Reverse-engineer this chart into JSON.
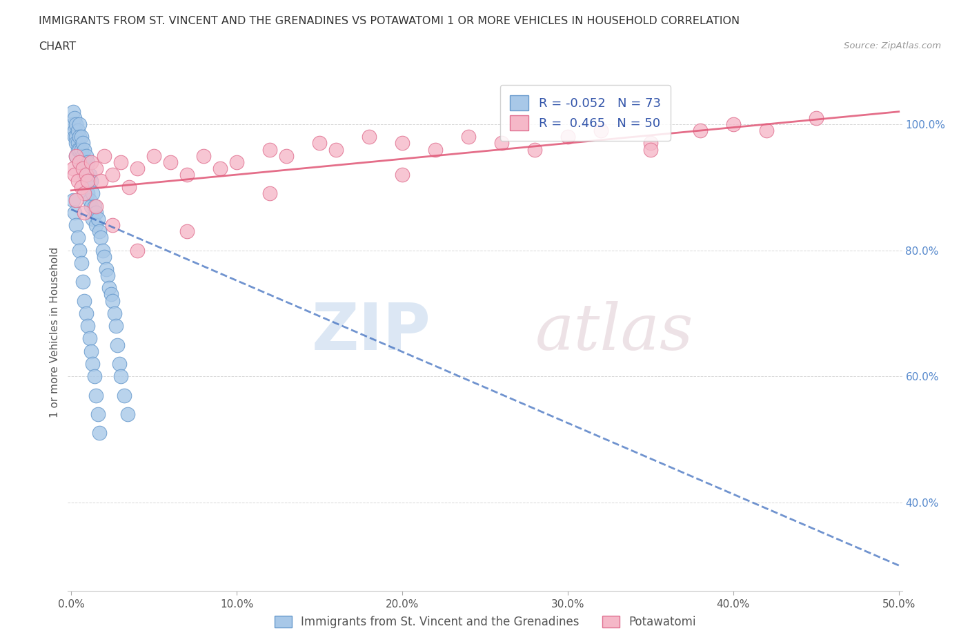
{
  "title_line1": "IMMIGRANTS FROM ST. VINCENT AND THE GRENADINES VS POTAWATOMI 1 OR MORE VEHICLES IN HOUSEHOLD CORRELATION",
  "title_line2": "CHART",
  "source": "Source: ZipAtlas.com",
  "ylabel": "1 or more Vehicles in Household",
  "xlim": [
    -0.002,
    0.502
  ],
  "ylim": [
    0.26,
    1.08
  ],
  "yticks": [
    0.4,
    0.6,
    0.8,
    1.0
  ],
  "xticks": [
    0.0,
    0.1,
    0.2,
    0.3,
    0.4,
    0.5
  ],
  "blue_color": "#A8C8E8",
  "blue_edge_color": "#6699CC",
  "pink_color": "#F5B8C8",
  "pink_edge_color": "#E07090",
  "blue_line_color": "#3366BB",
  "pink_line_color": "#E05575",
  "watermark_zip": "ZIP",
  "watermark_atlas": "atlas",
  "R_blue": -0.052,
  "N_blue": 73,
  "R_pink": 0.465,
  "N_pink": 50,
  "blue_x": [
    0.001,
    0.001,
    0.002,
    0.002,
    0.002,
    0.003,
    0.003,
    0.003,
    0.003,
    0.004,
    0.004,
    0.004,
    0.005,
    0.005,
    0.005,
    0.005,
    0.006,
    0.006,
    0.006,
    0.007,
    0.007,
    0.007,
    0.008,
    0.008,
    0.008,
    0.009,
    0.009,
    0.01,
    0.01,
    0.01,
    0.011,
    0.011,
    0.012,
    0.012,
    0.013,
    0.013,
    0.014,
    0.015,
    0.015,
    0.016,
    0.017,
    0.018,
    0.019,
    0.02,
    0.021,
    0.022,
    0.023,
    0.024,
    0.025,
    0.026,
    0.027,
    0.028,
    0.029,
    0.03,
    0.032,
    0.034,
    0.001,
    0.002,
    0.003,
    0.004,
    0.005,
    0.006,
    0.007,
    0.008,
    0.009,
    0.01,
    0.011,
    0.012,
    0.013,
    0.014,
    0.015,
    0.016,
    0.017
  ],
  "blue_y": [
    1.02,
    1.0,
    1.01,
    0.99,
    0.98,
    1.0,
    0.98,
    0.97,
    0.95,
    0.99,
    0.97,
    0.96,
    1.0,
    0.98,
    0.96,
    0.94,
    0.98,
    0.96,
    0.94,
    0.97,
    0.95,
    0.93,
    0.96,
    0.94,
    0.92,
    0.95,
    0.92,
    0.94,
    0.91,
    0.89,
    0.92,
    0.88,
    0.91,
    0.87,
    0.89,
    0.85,
    0.87,
    0.86,
    0.84,
    0.85,
    0.83,
    0.82,
    0.8,
    0.79,
    0.77,
    0.76,
    0.74,
    0.73,
    0.72,
    0.7,
    0.68,
    0.65,
    0.62,
    0.6,
    0.57,
    0.54,
    0.88,
    0.86,
    0.84,
    0.82,
    0.8,
    0.78,
    0.75,
    0.72,
    0.7,
    0.68,
    0.66,
    0.64,
    0.62,
    0.6,
    0.57,
    0.54,
    0.51
  ],
  "pink_x": [
    0.001,
    0.002,
    0.003,
    0.004,
    0.005,
    0.006,
    0.007,
    0.008,
    0.009,
    0.01,
    0.012,
    0.015,
    0.018,
    0.02,
    0.025,
    0.03,
    0.035,
    0.04,
    0.05,
    0.06,
    0.07,
    0.08,
    0.09,
    0.1,
    0.12,
    0.13,
    0.15,
    0.16,
    0.18,
    0.2,
    0.22,
    0.24,
    0.26,
    0.28,
    0.3,
    0.32,
    0.35,
    0.38,
    0.4,
    0.42,
    0.45,
    0.003,
    0.008,
    0.015,
    0.025,
    0.04,
    0.07,
    0.12,
    0.2,
    0.35
  ],
  "pink_y": [
    0.93,
    0.92,
    0.95,
    0.91,
    0.94,
    0.9,
    0.93,
    0.89,
    0.92,
    0.91,
    0.94,
    0.93,
    0.91,
    0.95,
    0.92,
    0.94,
    0.9,
    0.93,
    0.95,
    0.94,
    0.92,
    0.95,
    0.93,
    0.94,
    0.96,
    0.95,
    0.97,
    0.96,
    0.98,
    0.97,
    0.96,
    0.98,
    0.97,
    0.96,
    0.98,
    0.99,
    0.97,
    0.99,
    1.0,
    0.99,
    1.01,
    0.88,
    0.86,
    0.87,
    0.84,
    0.8,
    0.83,
    0.89,
    0.92,
    0.96
  ],
  "blue_line_x0": 0.0,
  "blue_line_x1": 0.5,
  "blue_line_y0": 0.865,
  "blue_line_y1": 0.3,
  "pink_line_x0": 0.0,
  "pink_line_x1": 0.5,
  "pink_line_y0": 0.895,
  "pink_line_y1": 1.02
}
